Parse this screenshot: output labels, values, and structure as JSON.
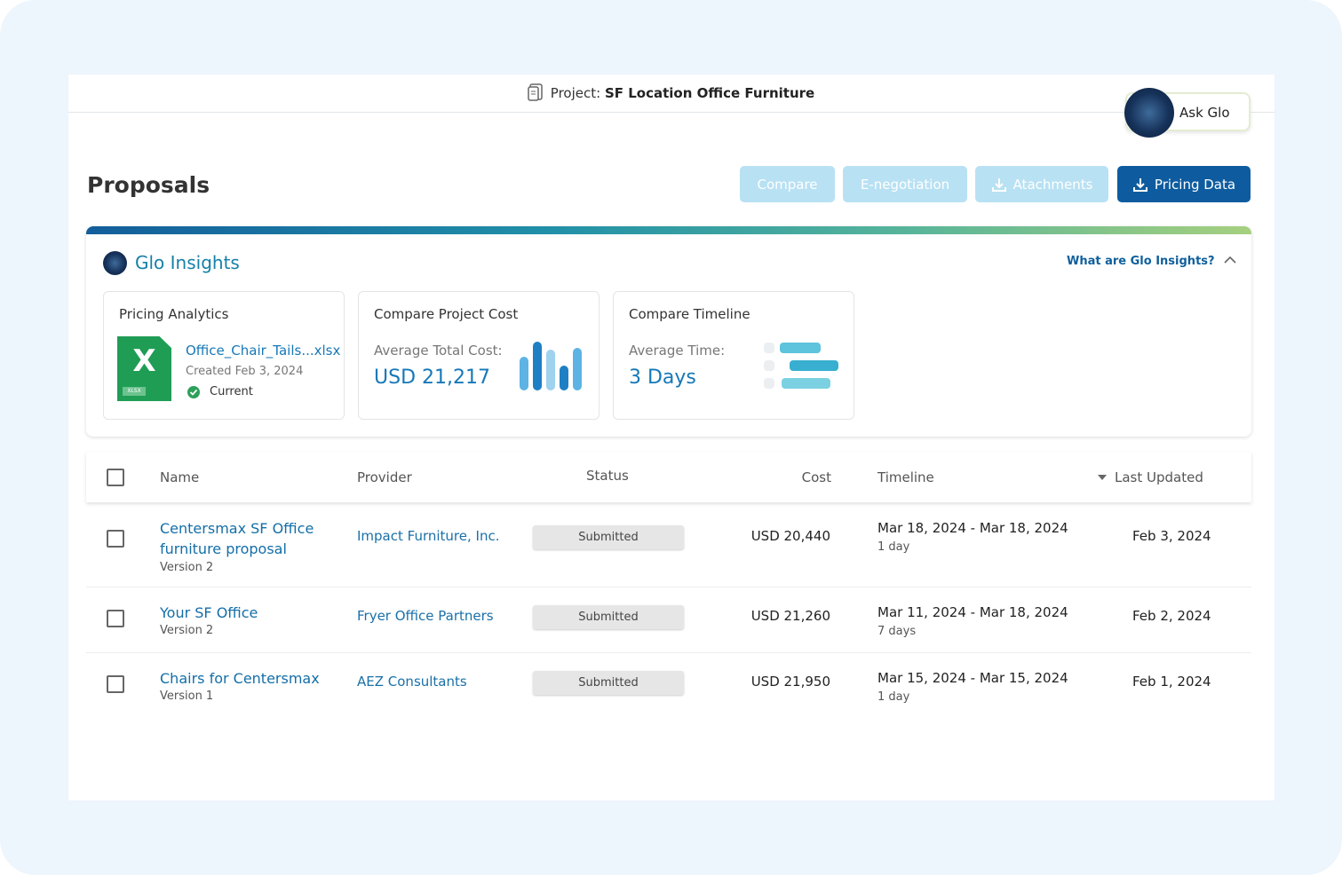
{
  "header": {
    "project_label": "Project:",
    "project_name": "SF Location Office Furniture",
    "ask_glo": "Ask Glo"
  },
  "page": {
    "title": "Proposals",
    "buttons": [
      "Compare",
      "E-negotiation",
      "Atachments",
      "Pricing Data"
    ]
  },
  "insights": {
    "title": "Glo Insights",
    "help_link": "What are Glo Insights?",
    "pricing": {
      "title": "Pricing Analytics",
      "icon_letter": "X",
      "file_type": "XLSX",
      "file_name": "Office_Chair_Tails...xlsx",
      "created": "Created Feb 3, 2024",
      "status": "Current"
    },
    "cost": {
      "title": "Compare Project Cost",
      "label": "Average Total Cost:",
      "value": "USD 21,217"
    },
    "timeline": {
      "title": "Compare Timeline",
      "label": "Average Time:",
      "value": "3 Days"
    }
  },
  "table": {
    "headers": [
      "Name",
      "Provider",
      "Status",
      "Cost",
      "Timeline",
      "Last Updated"
    ],
    "rows": [
      {
        "name": "Centersmax SF Office furniture proposal",
        "version": "Version 2",
        "provider": "Impact Furniture, Inc.",
        "status": "Submitted",
        "cost": "USD 20,440",
        "timeline": "Mar 18, 2024 - Mar 18, 2024",
        "duration": "1 day",
        "updated": "Feb 3, 2024"
      },
      {
        "name": "Your SF Office",
        "version": "Version 2",
        "provider": "Fryer Office Partners",
        "status": "Submitted",
        "cost": "USD 21,260",
        "timeline": "Mar 11, 2024 - Mar 18, 2024",
        "duration": "7 days",
        "updated": "Feb 2, 2024"
      },
      {
        "name": "Chairs for Centersmax",
        "version": "Version 1",
        "provider": "AEZ Consultants",
        "status": "Submitted",
        "cost": "USD 21,950",
        "timeline": "Mar 15, 2024 - Mar 15, 2024",
        "duration": "1 day",
        "updated": "Feb 1, 2024"
      }
    ]
  }
}
